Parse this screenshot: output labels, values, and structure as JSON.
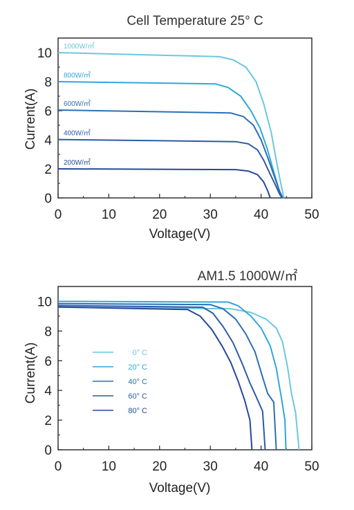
{
  "chart_data": [
    {
      "type": "line",
      "title": "Cell Temperature 25° C",
      "xlabel": "Voltage(V)",
      "ylabel": "Current(A)",
      "xlim": [
        0,
        50
      ],
      "ylim": [
        0,
        11
      ],
      "xticks": [
        "0",
        "10",
        "20",
        "30",
        "40",
        "50"
      ],
      "yticks": [
        "0",
        "2",
        "4",
        "6",
        "8",
        "10"
      ],
      "grid": false,
      "legend": "inline-labels",
      "series": [
        {
          "name": "1000W/㎡",
          "color": "#6ac7de",
          "points": [
            [
              0,
              10
            ],
            [
              31.8,
              9.72
            ],
            [
              34.5,
              9.5
            ],
            [
              37,
              9.0
            ],
            [
              39,
              8.0
            ],
            [
              40.5,
              6.5
            ],
            [
              42,
              4.5
            ],
            [
              43.2,
              2.2
            ],
            [
              44,
              0.8
            ],
            [
              44.5,
              0
            ]
          ]
        },
        {
          "name": "800W/㎡",
          "color": "#2fa7d8",
          "points": [
            [
              0,
              8
            ],
            [
              31,
              7.85
            ],
            [
              33.5,
              7.6
            ],
            [
              36,
              7.0
            ],
            [
              38,
              6.0
            ],
            [
              39.8,
              4.8
            ],
            [
              41.2,
              3.4
            ],
            [
              42.5,
              1.8
            ],
            [
              43.6,
              0.5
            ],
            [
              44.3,
              0
            ]
          ]
        },
        {
          "name": "600W/㎡",
          "color": "#2a6fb4",
          "points": [
            [
              0,
              6.05
            ],
            [
              34,
              5.85
            ],
            [
              36.5,
              5.6
            ],
            [
              38.5,
              5.0
            ],
            [
              40,
              4.0
            ],
            [
              41.3,
              2.8
            ],
            [
              42.5,
              1.6
            ],
            [
              43.5,
              0.6
            ],
            [
              44.2,
              0
            ]
          ]
        },
        {
          "name": "400W/㎡",
          "color": "#2c5aa6",
          "points": [
            [
              0,
              4.02
            ],
            [
              35,
              3.87
            ],
            [
              37.5,
              3.72
            ],
            [
              39.3,
              3.3
            ],
            [
              40.5,
              2.6
            ],
            [
              41.7,
              1.7
            ],
            [
              42.8,
              0.9
            ],
            [
              43.6,
              0.3
            ],
            [
              44.1,
              0
            ]
          ]
        },
        {
          "name": "200W/㎡",
          "color": "#25489a",
          "points": [
            [
              0,
              2
            ],
            [
              35,
              1.95
            ],
            [
              37.5,
              1.85
            ],
            [
              39.3,
              1.6
            ],
            [
              40.5,
              1.1
            ],
            [
              41.3,
              0.5
            ],
            [
              41.8,
              0
            ]
          ]
        }
      ]
    },
    {
      "type": "line",
      "title": "AM1.5 1000W/㎡",
      "xlabel": "Voltage(V)",
      "ylabel": "Current(A)",
      "xlim": [
        0,
        50
      ],
      "ylim": [
        0,
        11
      ],
      "xticks": [
        "0",
        "10",
        "20",
        "30",
        "40",
        "50"
      ],
      "yticks": [
        "0",
        "2",
        "4",
        "6",
        "8",
        "10"
      ],
      "grid": false,
      "legend": "left-middle",
      "series": [
        {
          "name": "0° C",
          "color": "#6ac7de",
          "points": [
            [
              0,
              9.6
            ],
            [
              34,
              9.5
            ],
            [
              38,
              9.25
            ],
            [
              41,
              8.8
            ],
            [
              43,
              8.2
            ],
            [
              44.2,
              7.3
            ],
            [
              45.2,
              5.6
            ],
            [
              46,
              3.8
            ],
            [
              46.8,
              2.5
            ],
            [
              47.5,
              0
            ]
          ]
        },
        {
          "name": "20° C",
          "color": "#2fa7d8",
          "points": [
            [
              0,
              10.0
            ],
            [
              33.5,
              9.95
            ],
            [
              35.5,
              9.7
            ],
            [
              38,
              9.0
            ],
            [
              40,
              8.2
            ],
            [
              41.8,
              7.0
            ],
            [
              43,
              5.5
            ],
            [
              44,
              3.5
            ],
            [
              44.7,
              2.0
            ],
            [
              44.9,
              0
            ]
          ]
        },
        {
          "name": "40° C",
          "color": "#2a6fb4",
          "points": [
            [
              0,
              9.85
            ],
            [
              30,
              9.78
            ],
            [
              32.5,
              9.5
            ],
            [
              35,
              8.8
            ],
            [
              37,
              7.8
            ],
            [
              38.8,
              6.6
            ],
            [
              40.2,
              5.0
            ],
            [
              41.3,
              3.8
            ],
            [
              42.5,
              3.2
            ],
            [
              43,
              0
            ]
          ]
        },
        {
          "name": "60° C",
          "color": "#2c5aa6",
          "points": [
            [
              0,
              9.72
            ],
            [
              28.5,
              9.6
            ],
            [
              30.5,
              9.2
            ],
            [
              32.5,
              8.3
            ],
            [
              34.5,
              7.2
            ],
            [
              36.3,
              5.8
            ],
            [
              37.8,
              4.5
            ],
            [
              39,
              3.6
            ],
            [
              40.3,
              2.6
            ],
            [
              40.8,
              0
            ]
          ]
        },
        {
          "name": "80° C",
          "color": "#25489a",
          "points": [
            [
              0,
              9.62
            ],
            [
              25.5,
              9.45
            ],
            [
              28,
              9.0
            ],
            [
              30.3,
              8.1
            ],
            [
              32.3,
              7.0
            ],
            [
              34,
              5.9
            ],
            [
              35.5,
              4.6
            ],
            [
              36.8,
              3.3
            ],
            [
              37.8,
              2.0
            ],
            [
              38.2,
              0
            ]
          ]
        }
      ]
    }
  ]
}
